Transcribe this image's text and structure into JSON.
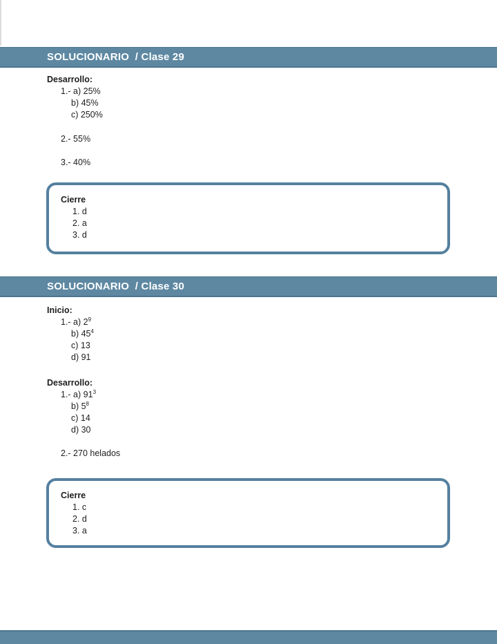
{
  "colors": {
    "bar_background": "#5e88a2",
    "bar_edge": "#4c768f",
    "box_border": "#54809f",
    "text": "#1d1d1d"
  },
  "section1": {
    "header": "SOLUCIONARIO  / Clase 29",
    "desarrollo": {
      "label": "Desarrollo:",
      "q1": [
        {
          "text": "1.- a) 25%"
        },
        {
          "text": "b) 45%"
        },
        {
          "text": "c) 250%"
        }
      ],
      "q2": "2.- 55%",
      "q3": "3.- 40%"
    },
    "cierre": {
      "label": "Cierre",
      "a1": "1. d",
      "a2": "2. a",
      "a3": "3. d"
    }
  },
  "section2": {
    "header": "SOLUCIONARIO  / Clase 30",
    "inicio": {
      "label": "Inicio:",
      "q1": [
        {
          "text": "1.- a) 2",
          "sup": "9"
        },
        {
          "text": "b) 45",
          "sup": "4"
        },
        {
          "text": "c) 13"
        },
        {
          "text": "d) 91"
        }
      ]
    },
    "desarrollo": {
      "label": "Desarrollo:",
      "q1": [
        {
          "text": "1.- a) 91",
          "sup": "3"
        },
        {
          "text": "b) 5",
          "sup": "8"
        },
        {
          "text": "c) 14"
        },
        {
          "text": "d) 30"
        }
      ],
      "q2": "2.- 270 helados"
    },
    "cierre": {
      "label": "Cierre",
      "a1": "1. c",
      "a2": "2. d",
      "a3": "3. a"
    }
  }
}
